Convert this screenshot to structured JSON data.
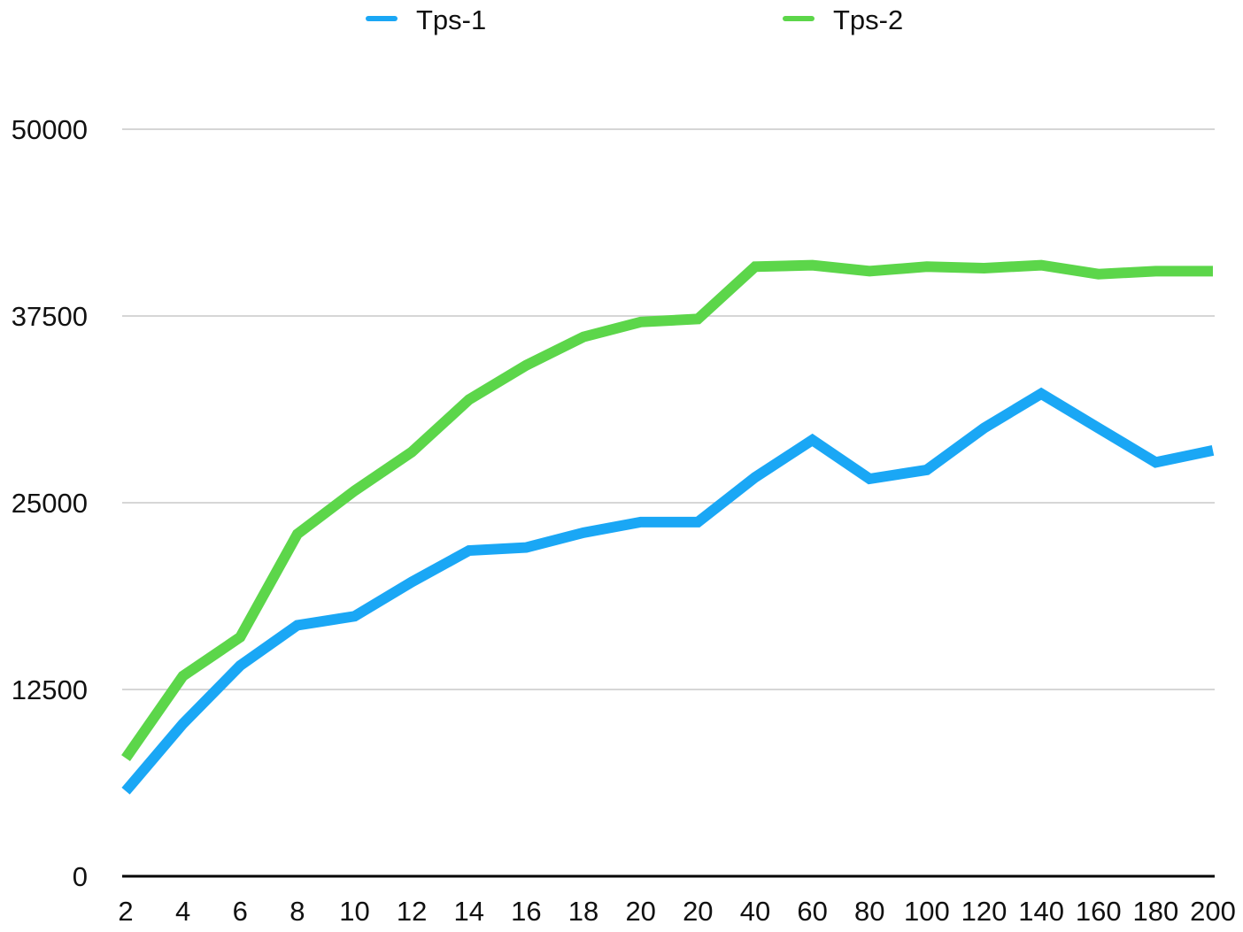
{
  "chart_data": {
    "type": "line",
    "title": "",
    "xlabel": "",
    "ylabel": "",
    "categories": [
      "2",
      "4",
      "6",
      "8",
      "10",
      "12",
      "14",
      "16",
      "18",
      "20",
      "20",
      "40",
      "60",
      "80",
      "100",
      "120",
      "140",
      "160",
      "180",
      "200"
    ],
    "ylim": [
      0,
      50000
    ],
    "yticks": [
      "0",
      "12500",
      "25000",
      "37500",
      "50000"
    ],
    "grid": "horizontal",
    "legend_position": "top",
    "series": [
      {
        "name": "Tps-1",
        "color": "#1aa7f5",
        "values": [
          5700,
          10200,
          14100,
          16800,
          17400,
          19700,
          21800,
          22000,
          23000,
          23700,
          23700,
          26700,
          29200,
          26600,
          27200,
          30000,
          32300,
          30000,
          27700,
          28500
        ]
      },
      {
        "name": "Tps-2",
        "color": "#5cd64a",
        "values": [
          7900,
          13400,
          16000,
          22900,
          25800,
          28400,
          31900,
          34200,
          36100,
          37100,
          37300,
          40800,
          40900,
          40500,
          40800,
          40700,
          40900,
          40300,
          40500,
          40500
        ]
      }
    ]
  }
}
